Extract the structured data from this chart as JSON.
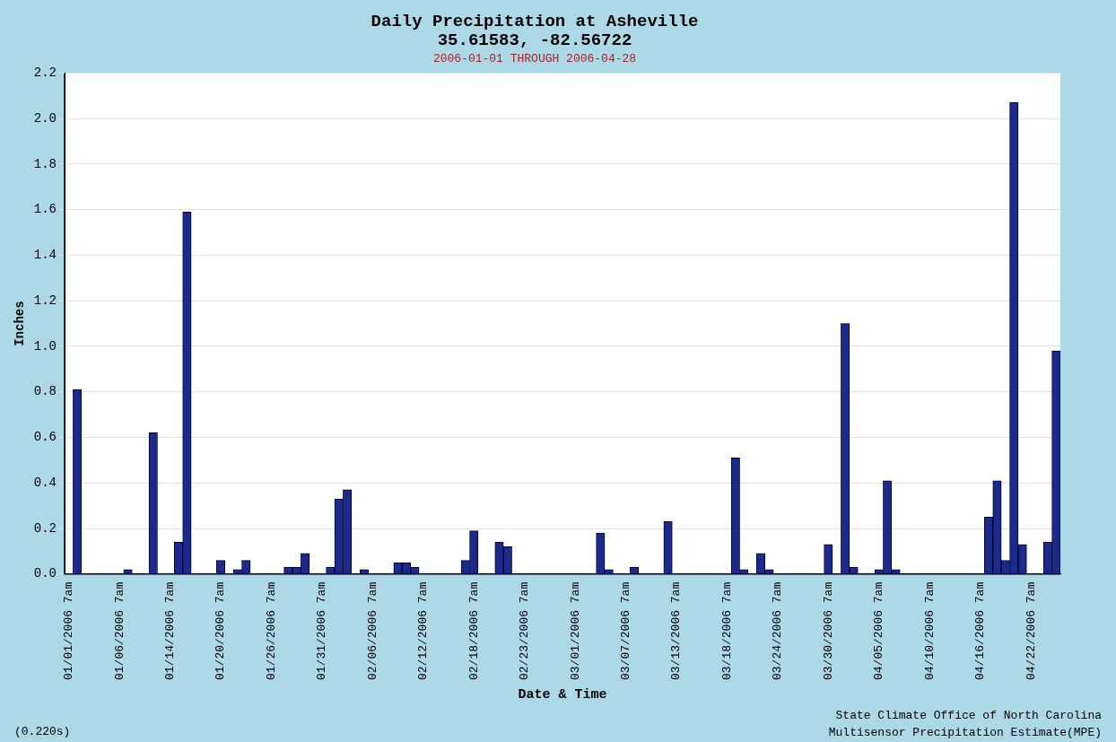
{
  "chart_data": {
    "type": "bar",
    "title": "Daily Precipitation at Asheville\n35.61583, -82.56722",
    "subtitle": "2006-01-01 THROUGH 2006-04-28",
    "xlabel": "Date & Time",
    "ylabel": "Inches",
    "categories": [
      "01/01/2006 7am",
      null,
      null,
      null,
      null,
      null,
      "01/06/2006 7am",
      null,
      null,
      null,
      null,
      null,
      "01/14/2006 7am",
      null,
      null,
      null,
      null,
      null,
      "01/20/2006 7am",
      null,
      null,
      null,
      null,
      null,
      "01/26/2006 7am",
      null,
      null,
      null,
      null,
      null,
      "01/31/2006 7am",
      null,
      null,
      null,
      null,
      null,
      "02/06/2006 7am",
      null,
      null,
      null,
      null,
      null,
      "02/12/2006 7am",
      null,
      null,
      null,
      null,
      null,
      "02/18/2006 7am",
      null,
      null,
      null,
      null,
      null,
      "02/23/2006 7am",
      null,
      null,
      null,
      null,
      null,
      "03/01/2006 7am",
      null,
      null,
      null,
      null,
      null,
      "03/07/2006 7am",
      null,
      null,
      null,
      null,
      null,
      "03/13/2006 7am",
      null,
      null,
      null,
      null,
      null,
      "03/18/2006 7am",
      null,
      null,
      null,
      null,
      null,
      "03/24/2006 7am",
      null,
      null,
      null,
      null,
      null,
      "03/30/2006 7am",
      null,
      null,
      null,
      null,
      null,
      "04/05/2006 7am",
      null,
      null,
      null,
      null,
      null,
      "04/10/2006 7am",
      null,
      null,
      null,
      null,
      null,
      "04/16/2006 7am",
      null,
      null,
      null,
      null,
      null,
      "04/22/2006 7am",
      null,
      null,
      null
    ],
    "values": [
      0,
      0.81,
      0,
      0,
      0,
      0,
      0,
      0.02,
      0,
      0,
      0.62,
      0,
      0,
      0.14,
      1.59,
      0,
      0,
      0,
      0.06,
      0,
      0.02,
      0.06,
      0,
      0,
      0,
      0,
      0.03,
      0.03,
      0.09,
      0,
      0,
      0.03,
      0.33,
      0.37,
      0,
      0.02,
      0,
      0,
      0,
      0.05,
      0.05,
      0.03,
      0,
      0,
      0,
      0,
      0,
      0.06,
      0.19,
      0,
      0,
      0.14,
      0.12,
      0,
      0,
      0,
      0,
      0,
      0,
      0,
      0,
      0,
      0,
      0.18,
      0.02,
      0,
      0,
      0.03,
      0,
      0,
      0,
      0.23,
      0,
      0,
      0,
      0,
      0,
      0,
      0,
      0.51,
      0.02,
      0,
      0.09,
      0.02,
      0,
      0,
      0,
      0,
      0,
      0,
      0.13,
      0,
      1.1,
      0.03,
      0,
      0,
      0.02,
      0.41,
      0.02,
      0,
      0,
      0,
      0,
      0,
      0,
      0,
      0,
      0,
      0,
      0.25,
      0.41,
      0.06,
      2.07,
      0.13,
      0,
      0,
      0.14,
      0.98
    ],
    "color": "#1c2a8c",
    "ylim": [
      0,
      2.2
    ],
    "yticks": [
      {
        "value": 0,
        "label": "0.0"
      },
      {
        "value": 0.2,
        "label": "0.2"
      },
      {
        "value": 0.4,
        "label": "0.4"
      },
      {
        "value": 0.6,
        "label": "0.6"
      },
      {
        "value": 0.8,
        "label": "0.8"
      },
      {
        "value": 1,
        "label": "1.0"
      },
      {
        "value": 1.2,
        "label": "1.2"
      },
      {
        "value": 1.4,
        "label": "1.4"
      },
      {
        "value": 1.6,
        "label": "1.6"
      },
      {
        "value": 1.8,
        "label": "1.8"
      },
      {
        "value": 2,
        "label": "2.0"
      },
      {
        "value": 2.2,
        "label": "2.2"
      }
    ],
    "grid": "y",
    "annotations": [
      "State Climate Office of North Carolina\nMultisensor Precipitation Estimate(MPE)",
      "(0.220s)"
    ]
  }
}
